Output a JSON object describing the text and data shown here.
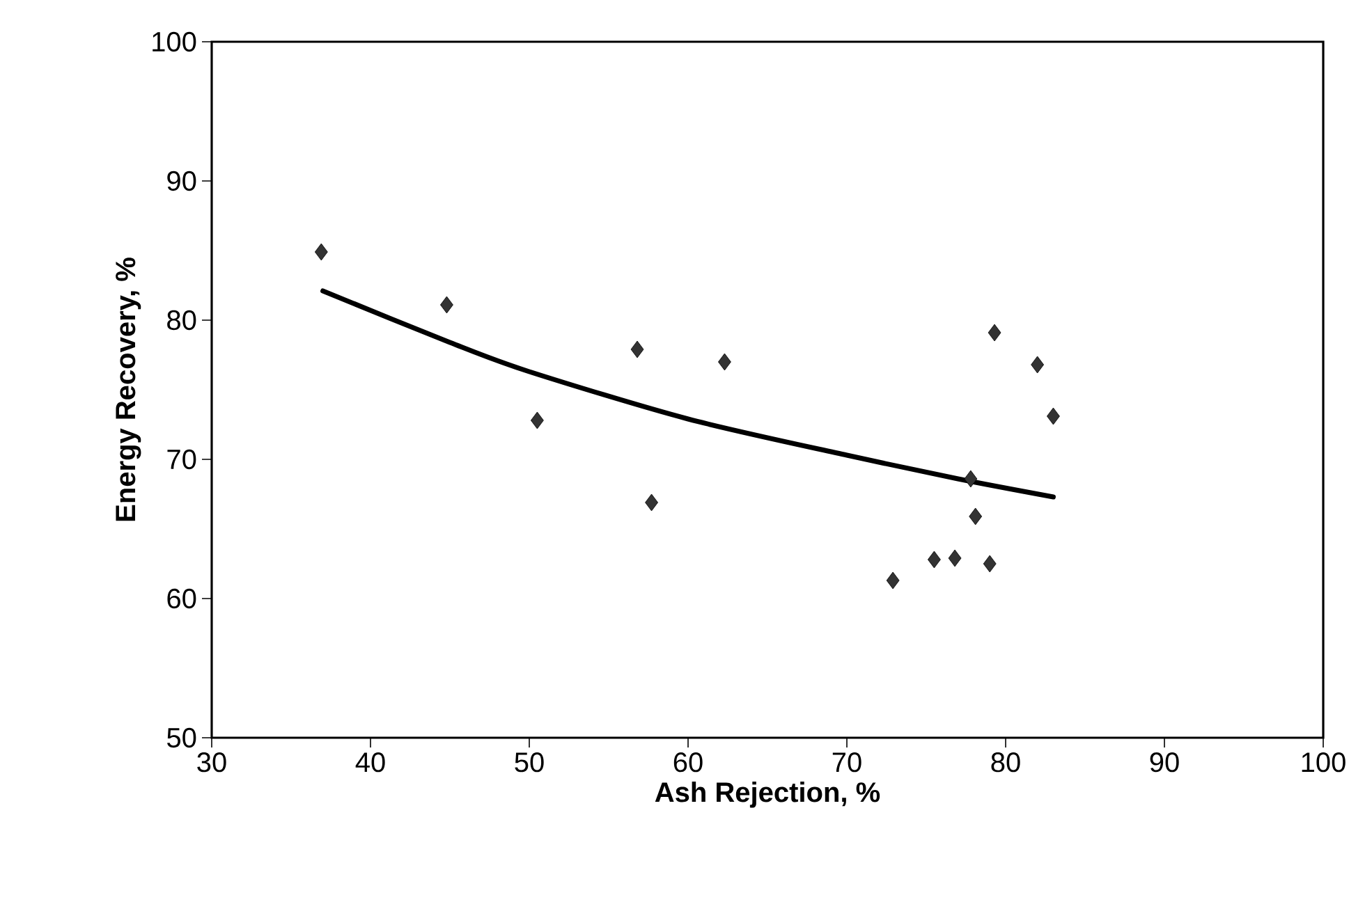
{
  "chart_data": {
    "type": "scatter",
    "xlabel": "Ash Rejection, %",
    "ylabel": "Energy Recovery, %",
    "xlim": [
      30,
      100
    ],
    "xticks": [
      30,
      40,
      50,
      60,
      70,
      80,
      90,
      100
    ],
    "ylim": [
      50,
      100
    ],
    "yticks": [
      50,
      60,
      70,
      80,
      90,
      100
    ],
    "marker": "diamond",
    "series": [
      {
        "color": "#333333",
        "x": [
          36.9,
          44.8,
          50.5,
          56.8,
          57.7,
          62.3,
          72.9,
          75.5,
          76.8,
          77.8,
          78.1,
          79.0,
          79.3,
          82.0,
          83.0
        ],
        "values": [
          84.9,
          81.1,
          72.8,
          77.9,
          66.9,
          77.0,
          61.3,
          62.8,
          62.9,
          68.6,
          65.9,
          62.5,
          79.1,
          76.8,
          73.1
        ]
      },
      {
        "type": "line",
        "marker": "none",
        "color": "#000000",
        "x": [
          37,
          45,
          50,
          60,
          70,
          77,
          83
        ],
        "values": [
          82.1,
          78.4,
          76.3,
          72.9,
          70.3,
          68.6,
          67.3
        ]
      }
    ]
  }
}
